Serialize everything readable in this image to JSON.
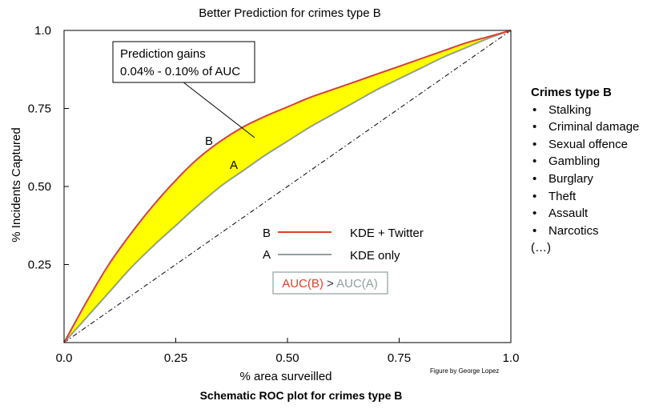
{
  "chart_data": {
    "type": "line",
    "title": "Better Prediction for crimes type B",
    "xlabel": "% area surveilled",
    "ylabel": "% Incidents Captured",
    "xlim": [
      0,
      1
    ],
    "ylim": [
      0,
      1
    ],
    "x_ticks": [
      "0.0",
      "0.25",
      "0.50",
      "0.75",
      "1.0"
    ],
    "y_ticks": [
      "0.25",
      "0.50",
      "0.75",
      "1.0"
    ],
    "x_tick_values": [
      0,
      0.25,
      0.5,
      0.75,
      1.0
    ],
    "y_tick_values": [
      0.25,
      0.5,
      0.75,
      1.0
    ],
    "grid": false,
    "legend_position": "center",
    "series": [
      {
        "name": "KDE + Twitter",
        "label": "B",
        "color": "#d9412b",
        "x": [
          0,
          0.05,
          0.1,
          0.15,
          0.2,
          0.25,
          0.3,
          0.35,
          0.4,
          0.45,
          0.5,
          0.55,
          0.6,
          0.65,
          0.7,
          0.75,
          0.8,
          0.85,
          0.9,
          0.95,
          1.0
        ],
        "y": [
          0,
          0.13,
          0.25,
          0.35,
          0.44,
          0.52,
          0.59,
          0.645,
          0.69,
          0.725,
          0.755,
          0.785,
          0.81,
          0.835,
          0.86,
          0.885,
          0.91,
          0.935,
          0.96,
          0.98,
          1.0
        ]
      },
      {
        "name": "KDE only",
        "label": "A",
        "color": "#8f9f9d",
        "x": [
          0,
          0.05,
          0.1,
          0.15,
          0.2,
          0.25,
          0.3,
          0.35,
          0.4,
          0.45,
          0.5,
          0.55,
          0.6,
          0.65,
          0.7,
          0.75,
          0.8,
          0.85,
          0.9,
          0.95,
          1.0
        ],
        "y": [
          0,
          0.08,
          0.16,
          0.24,
          0.31,
          0.375,
          0.44,
          0.5,
          0.55,
          0.6,
          0.645,
          0.69,
          0.73,
          0.77,
          0.81,
          0.845,
          0.88,
          0.915,
          0.945,
          0.975,
          1.0
        ]
      }
    ],
    "baseline": {
      "x": [
        0,
        1
      ],
      "y": [
        0,
        1
      ]
    },
    "fill_between_color": "#ffff00",
    "annotations": [
      {
        "text_lines": [
          "Prediction gains",
          "0.04% - 0.10% of AUC"
        ],
        "points_to": [
          0.42,
          0.65
        ]
      }
    ],
    "auc_note": {
      "left": "AUC(B)",
      "op": " > ",
      "right": "AUC(A)"
    },
    "credit": "Figure by George Lopez"
  },
  "side_panel": {
    "title": "Crimes type B",
    "items": [
      "Stalking",
      "Criminal damage",
      "Sexual offence",
      "Gambling",
      "Burglary",
      "Theft",
      "Assault",
      "Narcotics"
    ],
    "more": "(…)"
  },
  "caption": "Schematic ROC plot for crimes type B"
}
